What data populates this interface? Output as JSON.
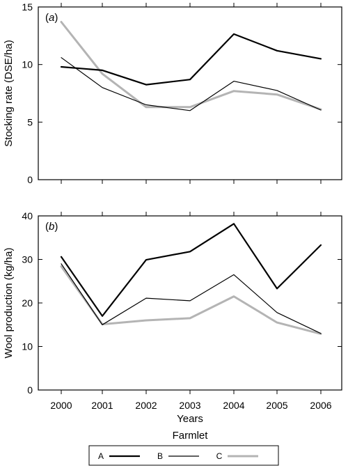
{
  "chart_data": [
    {
      "type": "line",
      "panel_label_letter": "a",
      "ylabel": "Stocking rate (DSE/ha)",
      "ylim": [
        0,
        15
      ],
      "yticks": [
        "0",
        "5",
        "10",
        "15"
      ],
      "x": [
        "2000",
        "2001",
        "2002",
        "2003",
        "2004",
        "2005",
        "2006"
      ],
      "series": [
        {
          "name": "A",
          "color": "#000000",
          "values": [
            9.8,
            9.5,
            8.25,
            8.7,
            12.65,
            11.2,
            10.5
          ]
        },
        {
          "name": "B",
          "color": "#000000",
          "values": [
            10.6,
            8.0,
            6.5,
            6.0,
            8.55,
            7.75,
            6.05
          ]
        },
        {
          "name": "C",
          "color": "#b4b4b4",
          "values": [
            13.7,
            9.2,
            6.3,
            6.3,
            7.7,
            7.4,
            6.1
          ]
        }
      ]
    },
    {
      "type": "line",
      "panel_label_letter": "b",
      "ylabel": "Wool production (kg/ha)",
      "xlabel": "Years",
      "ylim": [
        0,
        40
      ],
      "yticks": [
        "0",
        "10",
        "20",
        "30",
        "40"
      ],
      "x": [
        "2000",
        "2001",
        "2002",
        "2003",
        "2004",
        "2005",
        "2006"
      ],
      "series": [
        {
          "name": "A",
          "color": "#000000",
          "values": [
            30.6,
            17.0,
            29.9,
            31.8,
            38.2,
            23.3,
            33.3
          ]
        },
        {
          "name": "B",
          "color": "#000000",
          "values": [
            29.0,
            15.0,
            21.1,
            20.5,
            26.5,
            17.8,
            13.0
          ]
        },
        {
          "name": "C",
          "color": "#b4b4b4",
          "values": [
            28.4,
            15.1,
            16.0,
            16.5,
            21.5,
            15.5,
            12.9
          ]
        }
      ]
    }
  ],
  "legend": {
    "title": "Farmlet",
    "entries": [
      {
        "label": "A",
        "color": "#000000"
      },
      {
        "label": "B",
        "color": "#000000"
      },
      {
        "label": "C",
        "color": "#b4b4b4"
      }
    ]
  }
}
